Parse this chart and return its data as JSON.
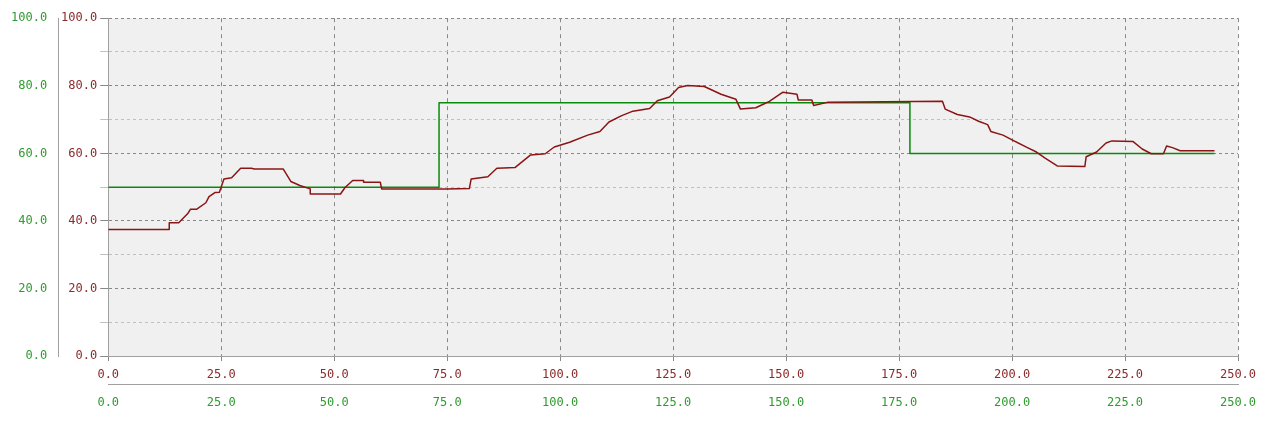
{
  "chart_data": {
    "type": "line",
    "series": [
      {
        "color": "#8b1414",
        "x": [
          0,
          13.5,
          13.5,
          15.6,
          17.6,
          18.2,
          19.6,
          21.6,
          22.3,
          23.6,
          24.6,
          25.6,
          27.3,
          29.3,
          31.7,
          32.3,
          38.7,
          40.4,
          42.4,
          44.7,
          44.7,
          51.4,
          52.4,
          54.1,
          56.5,
          56.5,
          60.2,
          60.5,
          74.9,
          79.9,
          80.3,
          84.0,
          86.0,
          90.0,
          93.4,
          96.7,
          98.7,
          102.1,
          106.1,
          108.8,
          110.8,
          113.5,
          116.1,
          119.8,
          121.5,
          124.2,
          126.2,
          128.2,
          131.9,
          135.6,
          138.9,
          139.9,
          143.3,
          146.3,
          149.3,
          152.4,
          152.7,
          155.7,
          156.1,
          159.1,
          184.6,
          185.2,
          187.9,
          190.6,
          192.6,
          194.6,
          195.3,
          198.0,
          200.0,
          203.4,
          205.4,
          207.4,
          210.0,
          216.1,
          216.4,
          218.7,
          220.8,
          222.1,
          226.8,
          228.8,
          230.8,
          233.5,
          234.2,
          235.5,
          237.2,
          244.8
        ],
        "values": [
          37.5,
          37.5,
          39.5,
          39.5,
          42.2,
          43.5,
          43.5,
          45.4,
          47.2,
          48.4,
          48.5,
          52.4,
          52.8,
          55.6,
          55.6,
          55.4,
          55.4,
          51.7,
          50.5,
          49.5,
          48.0,
          48.0,
          49.9,
          52.0,
          52.0,
          51.5,
          51.5,
          49.5,
          49.5,
          49.6,
          52.4,
          53.1,
          55.6,
          55.8,
          59.5,
          59.9,
          61.9,
          63.3,
          65.4,
          66.5,
          69.3,
          71.1,
          72.5,
          73.3,
          75.6,
          76.7,
          79.5,
          80.1,
          79.8,
          77.5,
          76.0,
          73.1,
          73.5,
          75.4,
          78.1,
          77.5,
          75.8,
          75.8,
          74.2,
          75.1,
          75.4,
          73.1,
          71.5,
          70.8,
          69.5,
          68.5,
          66.5,
          65.4,
          64.0,
          61.7,
          60.4,
          58.5,
          56.3,
          56.1,
          59.0,
          60.4,
          63.1,
          63.7,
          63.5,
          61.3,
          59.9,
          59.9,
          62.2,
          61.7,
          60.8,
          60.8
        ]
      },
      {
        "type": "step",
        "color": "#0a8a0a",
        "x": [
          0,
          73.2,
          177.4,
          244.8
        ],
        "values": [
          50,
          75,
          60,
          60
        ]
      }
    ],
    "xlim": [
      0,
      250
    ],
    "xticks": [
      {
        "value": 0,
        "label": "0.0"
      },
      {
        "value": 25,
        "label": "25.0"
      },
      {
        "value": 50,
        "label": "50.0"
      },
      {
        "value": 75,
        "label": "75.0"
      },
      {
        "value": 100,
        "label": "100.0"
      },
      {
        "value": 125,
        "label": "125.0"
      },
      {
        "value": 150,
        "label": "150.0"
      },
      {
        "value": 175,
        "label": "175.0"
      },
      {
        "value": 200,
        "label": "200.0"
      },
      {
        "value": 225,
        "label": "225.0"
      },
      {
        "value": 250,
        "label": "250.0"
      }
    ],
    "x2lim": [
      0,
      250
    ],
    "x2ticks": [
      {
        "value": 0,
        "label": "0.0"
      },
      {
        "value": 25,
        "label": "25.0"
      },
      {
        "value": 50,
        "label": "50.0"
      },
      {
        "value": 75,
        "label": "75.0"
      },
      {
        "value": 100,
        "label": "100.0"
      },
      {
        "value": 125,
        "label": "125.0"
      },
      {
        "value": 150,
        "label": "150.0"
      },
      {
        "value": 175,
        "label": "175.0"
      },
      {
        "value": 200,
        "label": "200.0"
      },
      {
        "value": 225,
        "label": "225.0"
      },
      {
        "value": 250,
        "label": "250.0"
      }
    ],
    "ylim": [
      0,
      100
    ],
    "yticks": [
      {
        "value": 0,
        "label": "0.0"
      },
      {
        "value": 10,
        "label": null
      },
      {
        "value": 20,
        "label": "20.0"
      },
      {
        "value": 30,
        "label": null
      },
      {
        "value": 40,
        "label": "40.0"
      },
      {
        "value": 50,
        "label": null
      },
      {
        "value": 60,
        "label": "60.0"
      },
      {
        "value": 70,
        "label": null
      },
      {
        "value": 80,
        "label": "80.0"
      },
      {
        "value": 90,
        "label": null
      },
      {
        "value": 100,
        "label": "100.0"
      }
    ],
    "y2lim": [
      0,
      100
    ],
    "y2ticks": [
      {
        "value": 0,
        "label": "0.0"
      },
      {
        "value": 20,
        "label": "20.0"
      },
      {
        "value": 40,
        "label": "40.0"
      },
      {
        "value": 60,
        "label": "60.0"
      },
      {
        "value": 80,
        "label": "80.0"
      },
      {
        "value": 100,
        "label": "100.0"
      }
    ],
    "grid": true,
    "marker": "none"
  }
}
